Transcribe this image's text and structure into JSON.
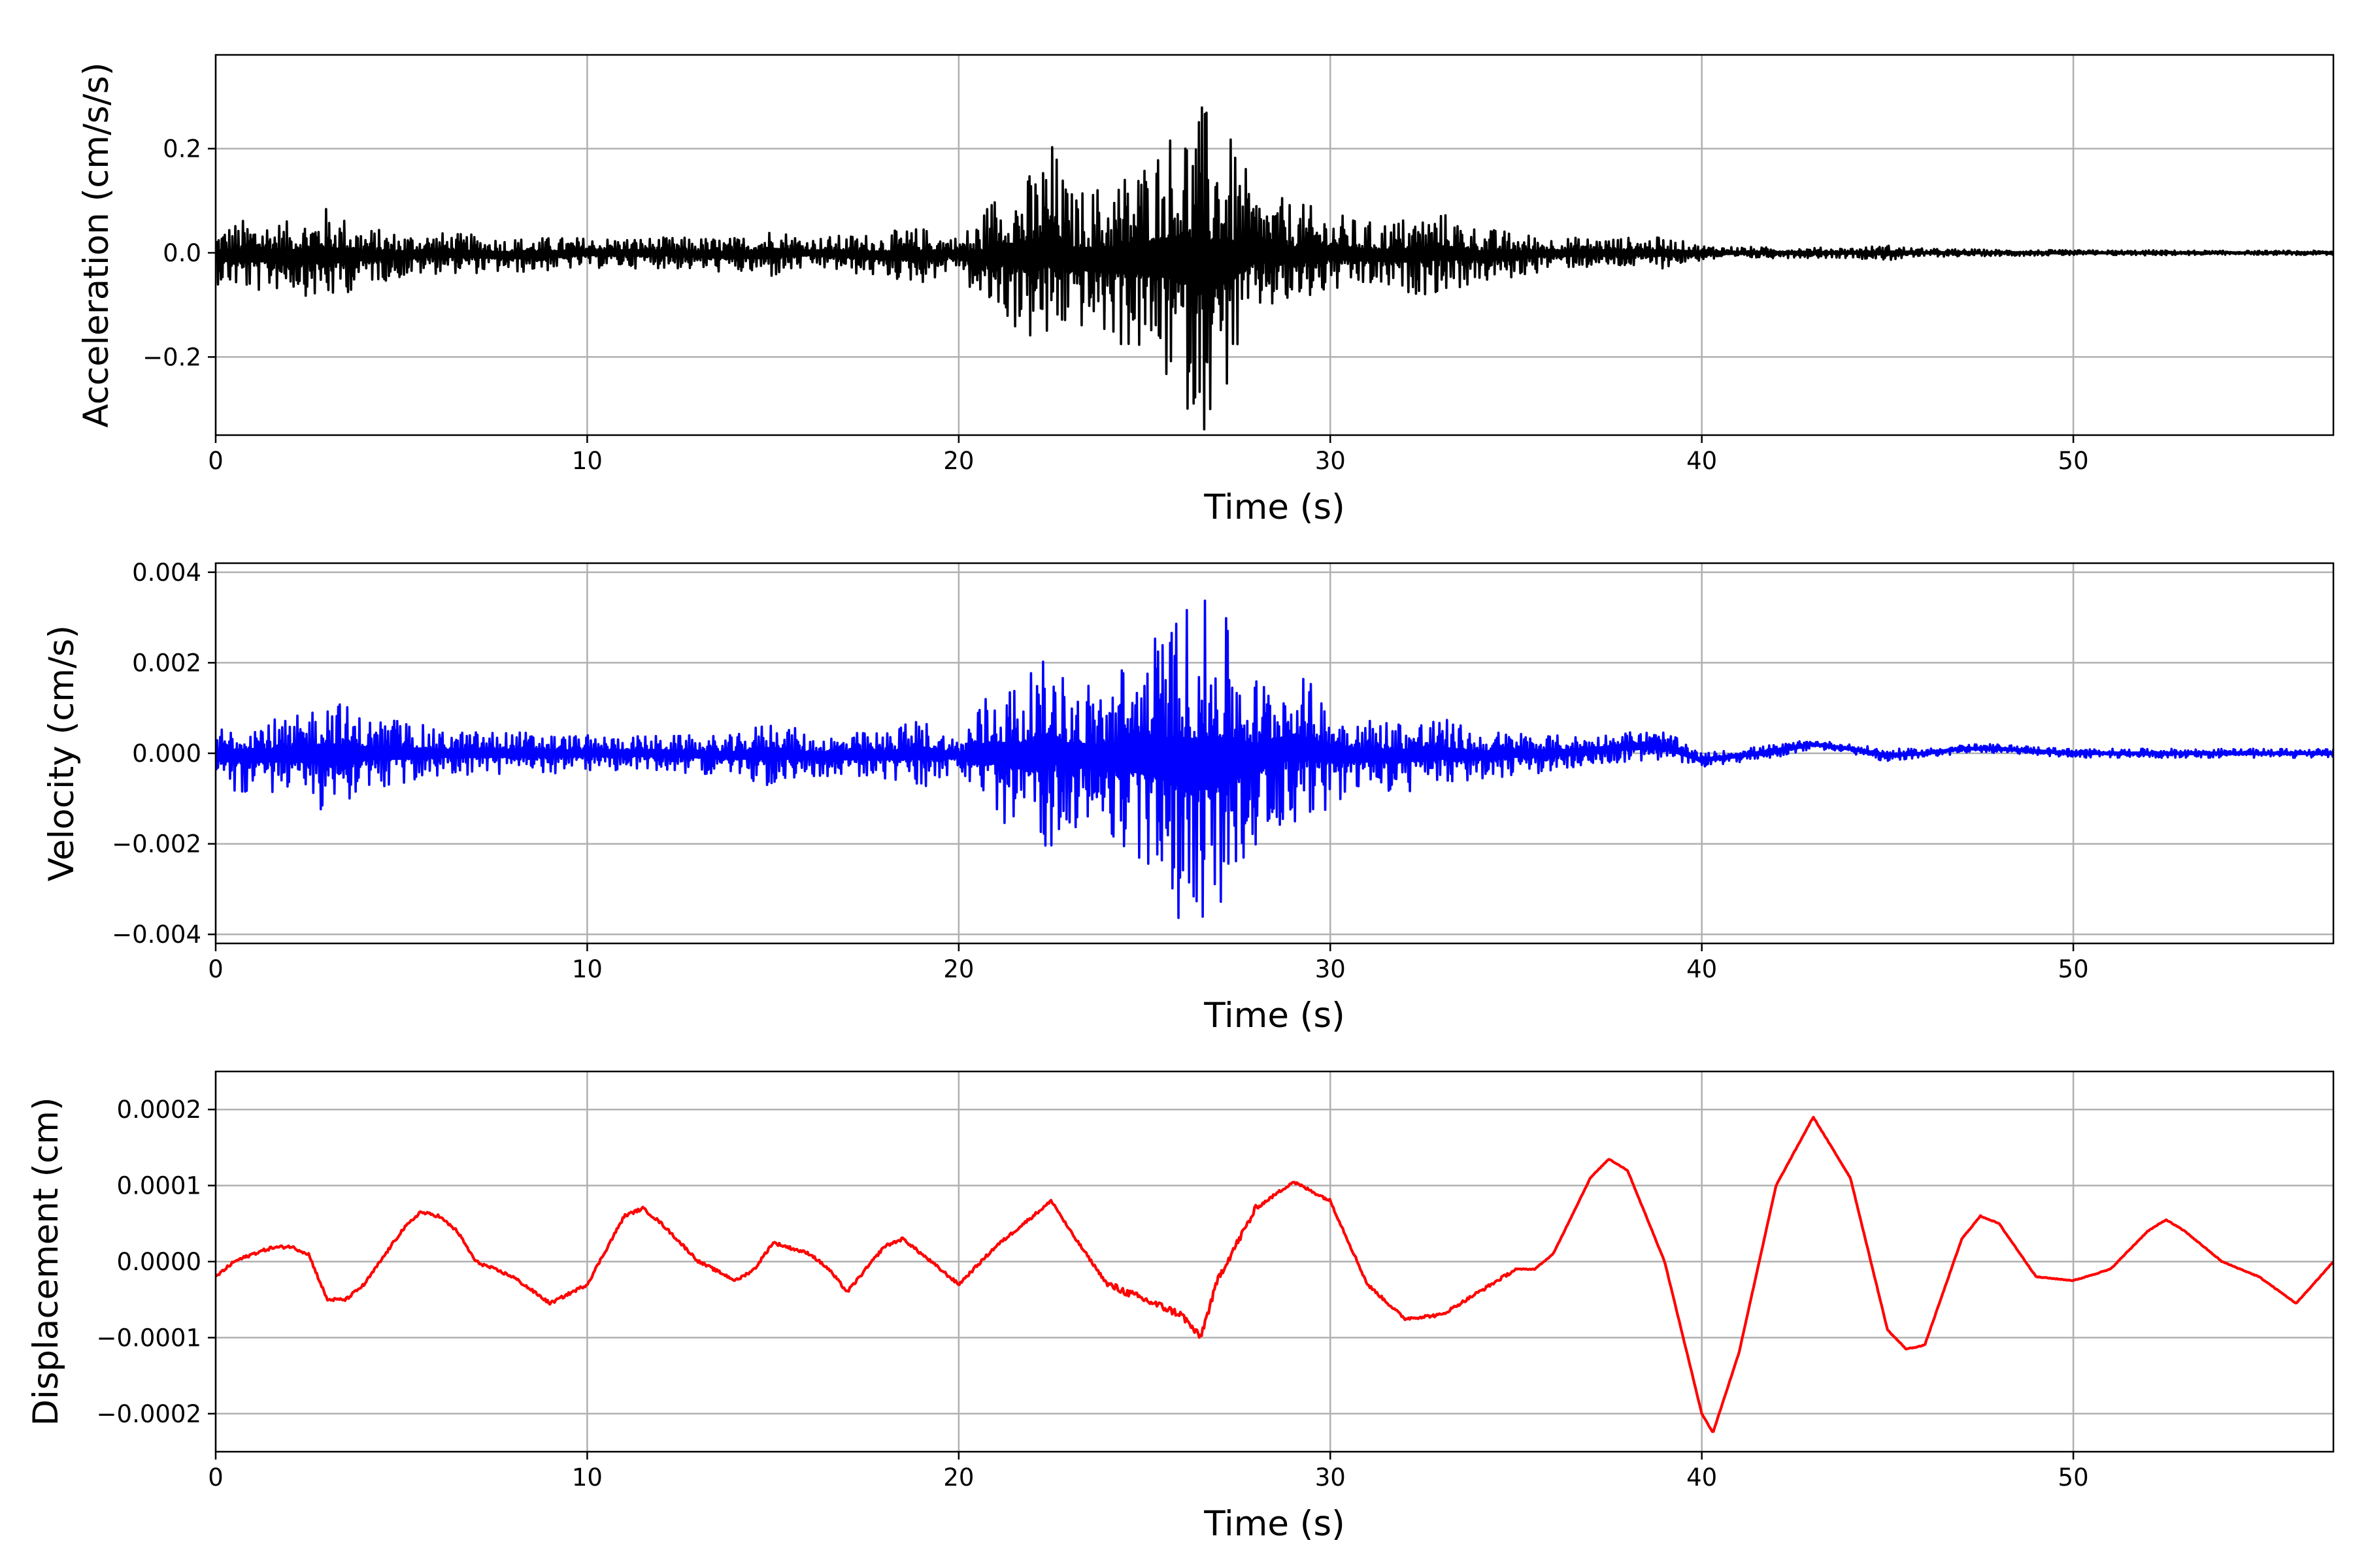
{
  "chart_data": [
    {
      "type": "line",
      "title": "",
      "xlabel": "Time (s)",
      "ylabel": "Acceleration (cm/s/s)",
      "xlim": [
        0,
        57
      ],
      "ylim": [
        -0.35,
        0.38
      ],
      "xticks": [
        0,
        10,
        20,
        30,
        40,
        50
      ],
      "xtick_labels": [
        "0",
        "10",
        "20",
        "30",
        "40",
        "50"
      ],
      "yticks": [
        -0.2,
        0.0,
        0.2
      ],
      "ytick_labels": [
        "−0.2",
        "0.0",
        "0.2"
      ],
      "grid": true,
      "legend": "none",
      "color": "#000000",
      "series": [
        {
          "kind": "envelope",
          "x": [
            0,
            1,
            2,
            3,
            4,
            5,
            6,
            8,
            10,
            12,
            14,
            15,
            16,
            18,
            19,
            20,
            20.5,
            21,
            22,
            22.5,
            23,
            24,
            25,
            26,
            26.5,
            27,
            28,
            29,
            30,
            31,
            32,
            33,
            34,
            35,
            36,
            37,
            38,
            39,
            40,
            42,
            44,
            45,
            46,
            48,
            50,
            52,
            54,
            57
          ],
          "upper": [
            0.05,
            0.07,
            0.06,
            0.09,
            0.05,
            0.04,
            0.04,
            0.03,
            0.03,
            0.03,
            0.03,
            0.05,
            0.03,
            0.04,
            0.05,
            0.03,
            0.07,
            0.12,
            0.16,
            0.22,
            0.12,
            0.14,
            0.19,
            0.27,
            0.29,
            0.27,
            0.12,
            0.1,
            0.08,
            0.06,
            0.07,
            0.08,
            0.05,
            0.04,
            0.03,
            0.03,
            0.03,
            0.03,
            0.015,
            0.01,
            0.01,
            0.015,
            0.008,
            0.006,
            0.005,
            0.005,
            0.004,
            0.004
          ],
          "lower": [
            -0.06,
            -0.08,
            -0.07,
            -0.1,
            -0.06,
            -0.05,
            -0.04,
            -0.04,
            -0.03,
            -0.03,
            -0.04,
            -0.05,
            -0.03,
            -0.05,
            -0.06,
            -0.03,
            -0.1,
            -0.12,
            -0.18,
            -0.2,
            -0.14,
            -0.17,
            -0.21,
            -0.29,
            -0.35,
            -0.31,
            -0.12,
            -0.11,
            -0.08,
            -0.07,
            -0.08,
            -0.08,
            -0.06,
            -0.05,
            -0.03,
            -0.03,
            -0.03,
            -0.03,
            -0.015,
            -0.01,
            -0.01,
            -0.015,
            -0.008,
            -0.006,
            -0.005,
            -0.005,
            -0.004,
            -0.004
          ]
        }
      ]
    },
    {
      "type": "line",
      "title": "",
      "xlabel": "Time (s)",
      "ylabel": "Velocity (cm/s)",
      "xlim": [
        0,
        57
      ],
      "ylim": [
        -0.0042,
        0.0042
      ],
      "xticks": [
        0,
        10,
        20,
        30,
        40,
        50
      ],
      "xtick_labels": [
        "0",
        "10",
        "20",
        "30",
        "40",
        "50"
      ],
      "yticks": [
        -0.004,
        -0.002,
        0.0,
        0.002,
        0.004
      ],
      "ytick_labels": [
        "−0.004",
        "−0.002",
        "0.000",
        "0.002",
        "0.004"
      ],
      "grid": true,
      "legend": "none",
      "color": "#0000ff",
      "series": [
        {
          "kind": "envelope",
          "x": [
            0,
            1,
            2,
            3,
            4,
            5,
            6,
            8,
            10,
            12,
            14,
            15,
            16,
            18,
            19,
            20,
            20.5,
            21,
            22,
            22.5,
            23,
            24,
            25,
            26,
            26.5,
            27,
            28,
            29,
            30,
            31,
            32,
            33,
            34,
            35,
            36,
            37,
            38,
            39,
            40,
            41,
            42,
            43,
            44,
            45,
            46,
            47,
            48,
            50,
            52,
            54,
            57
          ],
          "upper": [
            0.0006,
            0.0009,
            0.0007,
            0.0014,
            0.0008,
            0.0008,
            0.0005,
            0.0005,
            0.0004,
            0.0004,
            0.0004,
            0.0008,
            0.0004,
            0.0005,
            0.0008,
            0.0003,
            0.0012,
            0.0015,
            0.0018,
            0.0023,
            0.0015,
            0.0018,
            0.0024,
            0.0034,
            0.0034,
            0.0033,
            0.0018,
            0.0019,
            0.0012,
            0.0008,
            0.0008,
            0.0008,
            0.0005,
            0.0005,
            0.0004,
            0.0004,
            0.0005,
            0.0005,
            0.0,
            0.0001,
            0.0002,
            0.0003,
            0.0002,
            0.0001,
            0.0001,
            0.0002,
            0.0002,
            0.0001,
            0.0001,
            0.0001,
            0.0001
          ],
          "lower": [
            -0.0007,
            -0.001,
            -0.0008,
            -0.0014,
            -0.0008,
            -0.0008,
            -0.0005,
            -0.0005,
            -0.0004,
            -0.0004,
            -0.0005,
            -0.0008,
            -0.0005,
            -0.0006,
            -0.0008,
            -0.0004,
            -0.0013,
            -0.0015,
            -0.002,
            -0.0021,
            -0.0016,
            -0.002,
            -0.0025,
            -0.0038,
            -0.0039,
            -0.0037,
            -0.002,
            -0.0016,
            -0.0012,
            -0.0009,
            -0.0009,
            -0.0008,
            -0.0006,
            -0.0005,
            -0.0004,
            -0.0003,
            -0.0002,
            -0.0002,
            -0.0003,
            -0.0002,
            -0.0001,
            0.0001,
            0.0,
            -0.0002,
            -0.0001,
            0.0,
            0.0,
            -0.0001,
            -0.0001,
            -0.0001,
            -0.0001
          ]
        }
      ]
    },
    {
      "type": "line",
      "title": "",
      "xlabel": "Time (s)",
      "ylabel": "Displacement (cm)",
      "xlim": [
        0,
        57
      ],
      "ylim": [
        -0.00025,
        0.00025
      ],
      "xticks": [
        0,
        10,
        20,
        30,
        40,
        50
      ],
      "xtick_labels": [
        "0",
        "10",
        "20",
        "30",
        "40",
        "50"
      ],
      "yticks": [
        -0.0002,
        -0.0001,
        0.0,
        0.0001,
        0.0002
      ],
      "ytick_labels": [
        "−0.0002",
        "−0.0001",
        "0.0000",
        "0.0001",
        "0.0002"
      ],
      "grid": true,
      "legend": "none",
      "color": "#ff0000",
      "series": [
        {
          "kind": "line",
          "x": [
            0,
            0.5,
            1,
            1.5,
            2,
            2.5,
            3,
            3.5,
            4,
            5,
            5.5,
            6,
            6.5,
            7,
            8,
            9,
            10,
            11,
            11.5,
            12,
            13,
            14,
            14.5,
            15,
            16,
            16.5,
            17,
            18,
            18.5,
            19,
            20,
            21,
            22,
            22.5,
            23,
            24,
            25,
            26,
            26.5,
            27,
            28,
            29,
            30,
            31,
            32,
            33,
            34,
            35,
            35.5,
            36,
            37,
            37.5,
            38,
            39,
            40,
            40.3,
            41,
            42,
            43,
            44,
            45,
            45.5,
            46,
            47,
            47.5,
            48,
            49,
            50,
            51,
            52,
            52.5,
            53,
            54,
            55,
            56,
            57
          ],
          "y": [
            -2e-05,
            0.0,
            1e-05,
            1.8e-05,
            2e-05,
            1e-05,
            -5e-05,
            -5e-05,
            -3e-05,
            4e-05,
            6.5e-05,
            6e-05,
            4e-05,
            0.0,
            -2e-05,
            -5.5e-05,
            -3e-05,
            6e-05,
            7e-05,
            5e-05,
            0.0,
            -2.5e-05,
            -1e-05,
            2.5e-05,
            1e-05,
            -1e-05,
            -4e-05,
            2e-05,
            3e-05,
            1e-05,
            -3e-05,
            2e-05,
            6e-05,
            8e-05,
            4e-05,
            -3e-05,
            -5e-05,
            -7e-05,
            -0.0001,
            -2e-05,
            7e-05,
            0.000105,
            8e-05,
            -3e-05,
            -7.5e-05,
            -7e-05,
            -4e-05,
            -1e-05,
            -1e-05,
            1e-05,
            0.00011,
            0.000135,
            0.00012,
            0.0,
            -0.0002,
            -0.000225,
            -0.00012,
            0.0001,
            0.00019,
            0.00011,
            -9e-05,
            -0.000115,
            -0.00011,
            3e-05,
            6e-05,
            5e-05,
            -2e-05,
            -2.5e-05,
            -1e-05,
            4e-05,
            5.5e-05,
            4e-05,
            0.0,
            -2e-05,
            -5.5e-05,
            0.0
          ]
        }
      ]
    }
  ]
}
